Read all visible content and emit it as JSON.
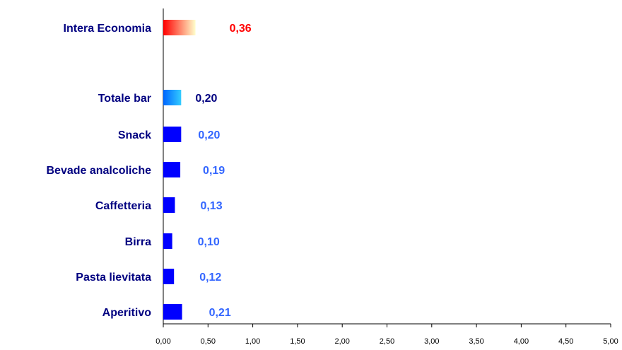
{
  "chart_data": {
    "type": "bar",
    "orientation": "horizontal",
    "categories": [
      "Intera Economia",
      "Totale bar",
      "Snack",
      "Bevade analcoliche",
      "Caffetteria",
      "Birra",
      "Pasta lievitata",
      "Aperitivo"
    ],
    "values": [
      0.36,
      0.2,
      0.2,
      0.19,
      0.13,
      0.1,
      0.12,
      0.21
    ],
    "value_labels": [
      "0,36",
      "0,20",
      "0,20",
      "0,19",
      "0,13",
      "0,10",
      "0,12",
      "0,21"
    ],
    "xlim": [
      0,
      5
    ],
    "x_ticks": [
      "0,00",
      "0,50",
      "1,00",
      "1,50",
      "2,00",
      "2,50",
      "3,00",
      "3,50",
      "4,00",
      "4,50",
      "5,00"
    ],
    "grid": false,
    "legend": "none",
    "colors": {
      "axis": "#000000",
      "category_label": "#000080",
      "default_bar": "#0000ff",
      "default_value_label": "#3366ff",
      "economy_gradient": [
        "#ff0000",
        "#ffffcc"
      ],
      "economy_value_label": "#ff0000",
      "totale_gradient": [
        "#0066ff",
        "#33ccff"
      ],
      "totale_value_label": "#000080"
    }
  }
}
